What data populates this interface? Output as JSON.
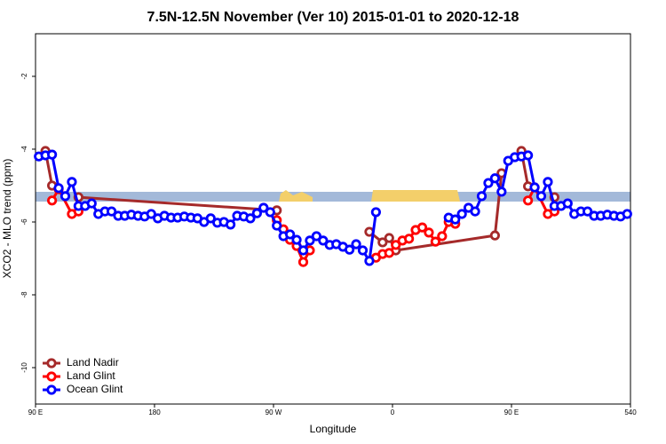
{
  "chart_data": {
    "type": "line",
    "title": "7.5N-12.5N November (Ver 10)   2015-01-01 to 2020-12-18",
    "x_label": "Longitude",
    "y_label": "XCO2 - MLO trend (ppm)",
    "xlim": [
      90,
      540
    ],
    "ylim": [
      -11,
      -0.83
    ],
    "xticks": [
      {
        "value": 90,
        "label": "90 E"
      },
      180,
      {
        "value": 270,
        "label": "90 W"
      },
      {
        "value": 360,
        "label": "0"
      },
      {
        "value": 450,
        "label": "90 E"
      },
      540
    ],
    "yticks": [
      -2,
      -4,
      -6,
      -8,
      -10
    ],
    "legend": "bottom-left",
    "series": [
      {
        "name": "Land Nadir",
        "color": "#a52a2a",
        "x": [
          97.5,
          102.5,
          112.5,
          122.5,
          272.5,
          282.5,
          342.5,
          352.5,
          357.5,
          362.5,
          437.5,
          442.5,
          447.5,
          457.5,
          462.5,
          472.5,
          482.5
        ],
        "values": [
          -4.05,
          -5.0,
          null,
          -5.32,
          -5.68,
          null,
          -6.27,
          -6.56,
          -6.44,
          -6.78,
          -6.37,
          -4.66,
          null,
          -4.05,
          -5.02,
          null,
          -5.32
        ]
      },
      {
        "name": "Land Glint",
        "color": "#ff0000",
        "x": [
          102.5,
          107.5,
          117.5,
          122.5,
          127.5,
          272.5,
          277.5,
          282.5,
          287.5,
          292.5,
          297.5,
          302.5,
          347.5,
          352.5,
          357.5,
          362.5,
          367.5,
          372.5,
          377.5,
          382.5,
          387.5,
          392.5,
          397.5,
          402.5,
          407.5,
          412.5,
          462.5,
          467.5,
          477.5,
          482.5
        ],
        "values": [
          -5.41,
          -5.1,
          -5.78,
          -5.71,
          null,
          -5.95,
          -6.2,
          -6.49,
          -6.66,
          -7.1,
          -6.78,
          null,
          -6.98,
          -6.88,
          -6.85,
          -6.63,
          -6.51,
          -6.46,
          -6.22,
          -6.15,
          -6.29,
          -6.54,
          -6.39,
          -6.0,
          -6.05,
          null,
          -5.41,
          -5.05,
          -5.78,
          -5.71
        ]
      },
      {
        "name": "Ocean Glint",
        "color": "#0000ff",
        "x": [
          92.5,
          97.5,
          102.5,
          107.5,
          112.5,
          117.5,
          122.5,
          127.5,
          132.5,
          137.5,
          142.5,
          147.5,
          152.5,
          157.5,
          162.5,
          167.5,
          172.5,
          177.5,
          182.5,
          187.5,
          192.5,
          197.5,
          202.5,
          207.5,
          212.5,
          217.5,
          222.5,
          227.5,
          232.5,
          237.5,
          242.5,
          247.5,
          252.5,
          257.5,
          262.5,
          267.5,
          272.5,
          277.5,
          282.5,
          287.5,
          292.5,
          297.5,
          302.5,
          307.5,
          312.5,
          317.5,
          322.5,
          327.5,
          332.5,
          337.5,
          342.5,
          347.5,
          352.5,
          357.5,
          362.5,
          367.5,
          372.5,
          377.5,
          382.5,
          387.5,
          392.5,
          397.5,
          402.5,
          407.5,
          412.5,
          417.5,
          422.5,
          427.5,
          432.5,
          437.5,
          442.5,
          447.5,
          452.5,
          457.5,
          462.5,
          467.5,
          472.5,
          477.5,
          482.5,
          487.5,
          492.5,
          497.5,
          502.5,
          507.5,
          512.5,
          517.5,
          522.5,
          527.5,
          532.5,
          537.5
        ],
        "values": [
          -4.2,
          -4.17,
          -4.15,
          -5.07,
          -5.29,
          -4.9,
          -5.56,
          -5.56,
          -5.49,
          -5.78,
          -5.71,
          -5.71,
          -5.83,
          -5.83,
          -5.8,
          -5.83,
          -5.85,
          -5.78,
          -5.9,
          -5.83,
          -5.88,
          -5.88,
          -5.85,
          -5.88,
          -5.9,
          -6.0,
          -5.9,
          -6.02,
          -6.0,
          -6.07,
          -5.83,
          -5.85,
          -5.9,
          -5.76,
          -5.61,
          -5.73,
          -6.1,
          -6.39,
          -6.34,
          -6.49,
          -6.78,
          -6.51,
          -6.39,
          -6.51,
          -6.63,
          -6.61,
          -6.68,
          -6.76,
          -6.61,
          -6.78,
          -7.07,
          -5.73,
          null,
          null,
          null,
          null,
          null,
          null,
          null,
          null,
          null,
          null,
          -5.88,
          -5.93,
          -5.78,
          -5.61,
          -5.71,
          -5.29,
          -4.93,
          -4.8,
          -5.17,
          -4.32,
          -4.22,
          -4.2,
          -4.17,
          -5.05,
          -5.29,
          -4.9,
          -5.56,
          -5.56,
          -5.49,
          -5.78,
          -5.71,
          -5.71,
          -5.83,
          -5.83,
          -5.8,
          -5.83,
          -5.85,
          -5.78
        ]
      }
    ]
  }
}
